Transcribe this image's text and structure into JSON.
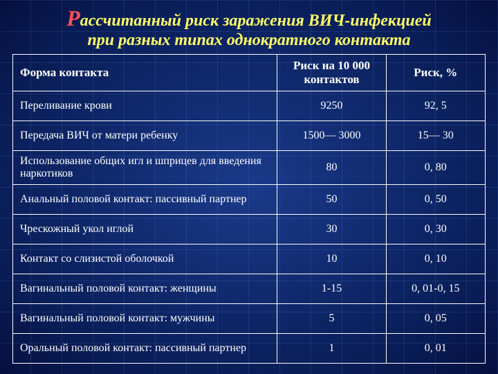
{
  "title": {
    "first_letter": "Р",
    "rest_line1": "ассчитанный риск заражения ВИЧ-инфекцией",
    "line2": "при разных типах однократного контакта"
  },
  "table": {
    "headers": {
      "form": "Форма контакта",
      "per10000": "Риск на 10 000 контактов",
      "percent": "Риск, %"
    },
    "rows": [
      {
        "form": "Переливание крови",
        "per10000": "9250",
        "percent": "92, 5"
      },
      {
        "form": "Передача ВИЧ от матери ребенку",
        "per10000": "1500— 3000",
        "percent": "15— 30"
      },
      {
        "form": "Использование общих игл и шприцев для введения наркотиков",
        "per10000": "80",
        "percent": "0, 80"
      },
      {
        "form": "Анальный половой контакт: пассивный партнер",
        "per10000": "50",
        "percent": "0, 50"
      },
      {
        "form": "Чрескожный укол иглой",
        "per10000": "30",
        "percent": "0, 30"
      },
      {
        "form": "Контакт со слизистой оболочкой",
        "per10000": "10",
        "percent": "0, 10"
      },
      {
        "form": "Вагинальный половой контакт: женщины",
        "per10000": "1-15",
        "percent": "0, 01-0, 15"
      },
      {
        "form": "Вагинальный половой контакт: мужчины",
        "per10000": "5",
        "percent": "0, 05"
      },
      {
        "form": "Оральный половой контакт: пассивный партнер",
        "per10000": "1",
        "percent": "0, 01"
      }
    ]
  },
  "style": {
    "title_color": "#ffff66",
    "first_letter_color": "#ff5050",
    "border_color": "#ffffff",
    "text_color": "#ffffff",
    "background_center": "#1a3a8a",
    "background_edge": "#051040",
    "grid_line_color": "rgba(100,150,255,0.15)",
    "title_fontsize": 24,
    "first_letter_fontsize": 32,
    "header_fontsize": 17,
    "cell_fontsize": 16,
    "col_widths_pct": [
      56,
      23,
      21
    ]
  }
}
